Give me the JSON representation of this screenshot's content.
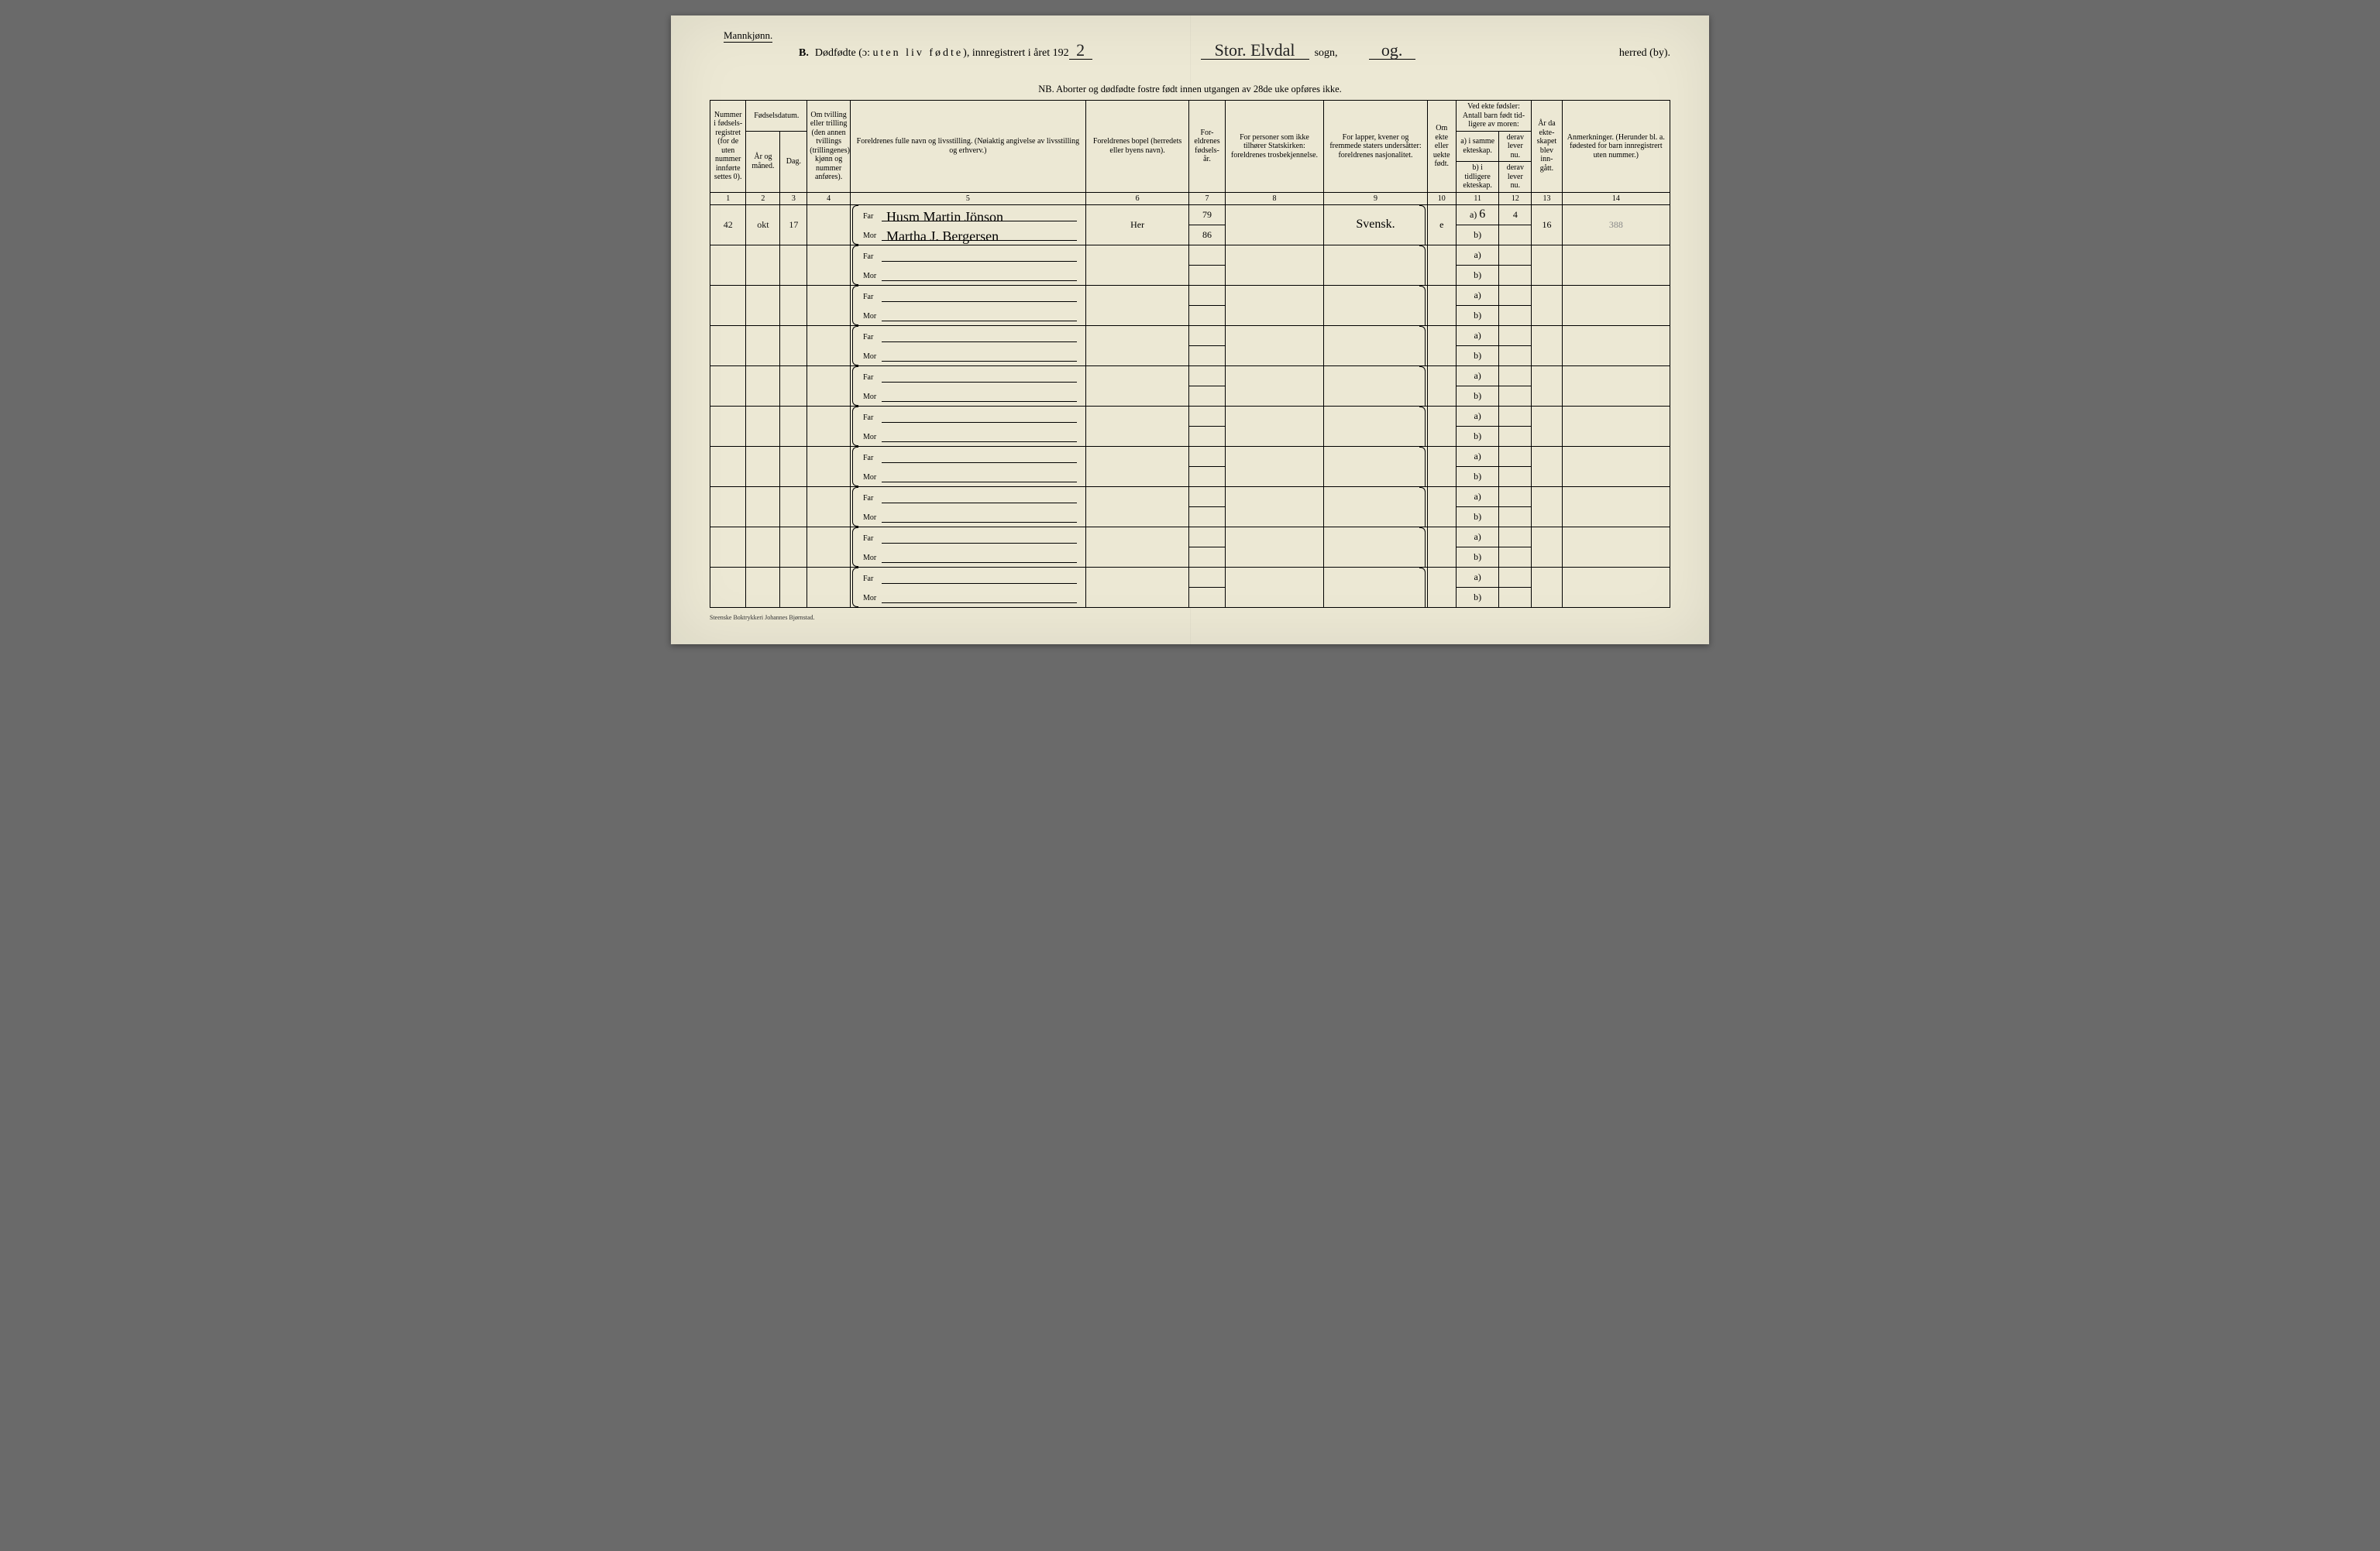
{
  "colors": {
    "paper": "#ece8d4",
    "ink": "#000000",
    "hand": "#111111",
    "faint": "#888888",
    "page_bg": "#6a6a6a"
  },
  "fonts": {
    "print": "Times New Roman",
    "hand": "Brush Script MT"
  },
  "header": {
    "gender": "Mannkjønn.",
    "section": "B.",
    "title_main": "Dødfødte (ɔ:",
    "title_spaced": "uten liv fødte",
    "title_tail": "), innregistrert i året 192",
    "year_suffix_hand": "2",
    "sogn_hand": "Stor. Elvdal",
    "sogn_label": "sogn,",
    "herred_hand": "og.",
    "herred_label": "herred (by).",
    "nb": "NB.  Aborter og dødfødte fostre født innen utgangen av 28de uke opføres ikke."
  },
  "columns": {
    "c1": "Nummer i fødsels-registret (for de uten nummer innførte settes 0).",
    "c2_top": "Fødselsdatum.",
    "c2a": "År og måned.",
    "c2b": "Dag.",
    "c4": "Om tvilling eller trilling (den annen tvillings (trillingenes) kjønn og nummer anføres).",
    "c5": "Foreldrenes fulle navn og livsstilling.\n(Nøiaktig angivelse av livsstilling og erhverv.)",
    "c6": "Foreldrenes bopel\n(herredets eller byens navn).",
    "c7": "For-eldrenes fødsels-år.",
    "c8": "For personer som ikke tilhører Statskirken:\nforeldrenes trosbekjennelse.",
    "c9": "For lapper, kvener og fremmede staters undersåtter:\nforeldrenes nasjonalitet.",
    "c10": "Om ekte eller uekte født.",
    "c11_top": "Ved ekte fødsler:\nAntall barn født tid-ligere av moren:",
    "c11a": "a) i samme ekteskap.",
    "c11b": "b) i tidligere ekteskap.",
    "c12a": "derav lever nu.",
    "c12b": "derav lever nu.",
    "c13": "År da ekte-skapet blev inn-gått.",
    "c14": "Anmerkninger.\n(Herunder bl. a. fødested for barn innregistrert uten nummer.)"
  },
  "colnums": [
    "1",
    "2",
    "3",
    "4",
    "5",
    "6",
    "7",
    "8",
    "9",
    "10",
    "11",
    "12",
    "13",
    "14"
  ],
  "row_labels": {
    "far": "Far",
    "mor": "Mor"
  },
  "ab_labels": {
    "a": "a)",
    "b": "b)"
  },
  "entries": [
    {
      "num": "42",
      "maaned": "okt",
      "dag": "17",
      "far": "Husm Martin Jönson",
      "mor": "Martha J. Bergersen",
      "bopel": "Her",
      "far_aar": "79",
      "mor_aar": "86",
      "nasj": "Svensk.",
      "ekte": "e",
      "a_val": "6",
      "a_lever": "4",
      "aar_ekt": "16",
      "anm": "388"
    },
    {},
    {},
    {},
    {},
    {},
    {},
    {},
    {},
    {}
  ],
  "footer": "Steenske Boktrykkeri Johannes Bjørnstad."
}
